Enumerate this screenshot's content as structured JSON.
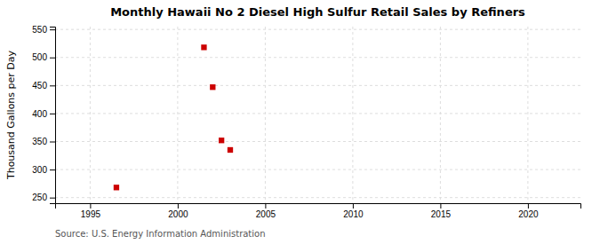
{
  "chart_data": {
    "type": "scatter",
    "title": "Monthly Hawaii No 2 Diesel High Sulfur Retail Sales by Refiners",
    "y_label": "Thousand Gallons per Day",
    "annotations": [
      "Source: U.S. Energy Information Administration"
    ],
    "x": [
      1996.5,
      2001.5,
      2002.0,
      2002.5,
      2003.0
    ],
    "values": [
      268,
      518,
      447,
      352,
      335
    ],
    "color": "#cc0000",
    "marker": "square",
    "xlim": [
      1993,
      2023
    ],
    "ylim": [
      240,
      555
    ],
    "xticks": [
      1995,
      2000,
      2005,
      2010,
      2015,
      2020
    ],
    "yticks": [
      250,
      300,
      350,
      400,
      450,
      500,
      550
    ],
    "grid": true
  }
}
